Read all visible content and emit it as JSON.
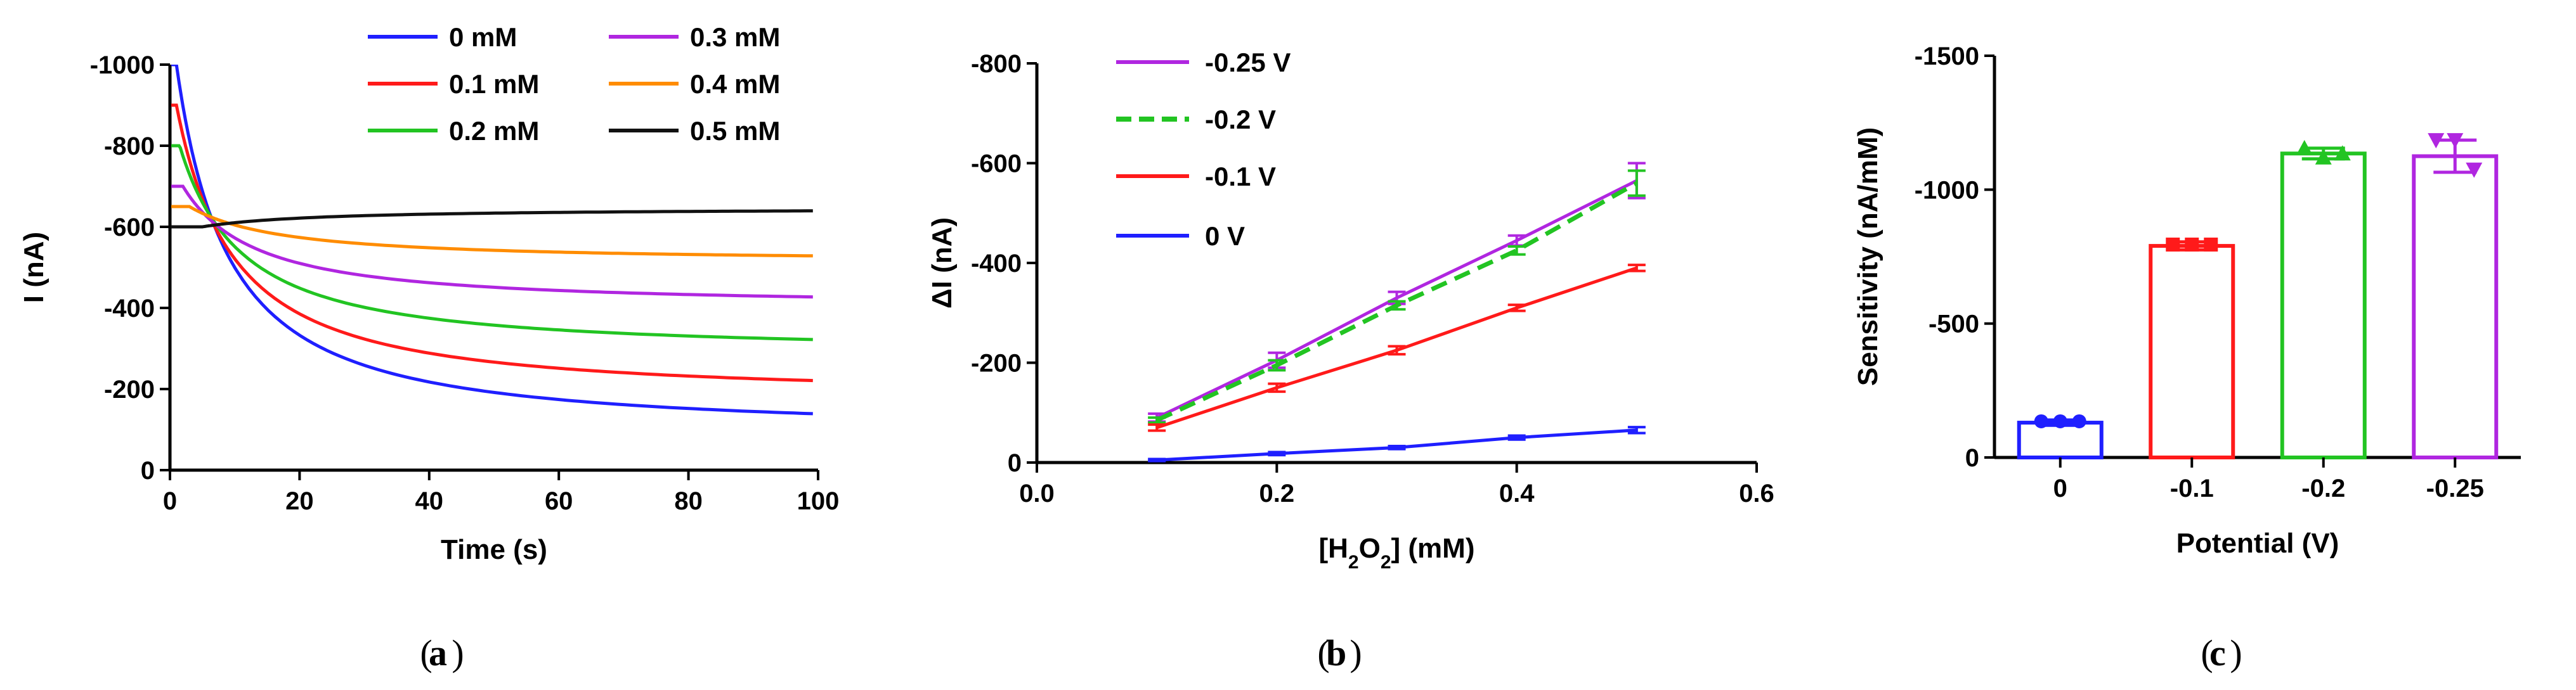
{
  "chart_data": [
    {
      "panel": "a",
      "type": "line",
      "panel_label": "a",
      "xlabel": "Time (s)",
      "ylabel": "I (nA)",
      "xlim": [
        0,
        100
      ],
      "ylim": [
        0,
        -1000
      ],
      "xticks": [
        0,
        20,
        40,
        60,
        80,
        100
      ],
      "yticks": [
        0,
        -200,
        -400,
        -600,
        -800,
        -1000
      ],
      "series": [
        {
          "name": "0 mM",
          "color": "#1f1fff",
          "steady": -93,
          "amp": -1000,
          "tau": 10,
          "t0": 1
        },
        {
          "name": "0.1 mM",
          "color": "#ff1a1a",
          "steady": -180,
          "amp": -900,
          "tau": 11,
          "t0": 1
        },
        {
          "name": "0.2 mM",
          "color": "#22c422",
          "steady": -290,
          "amp": -800,
          "tau": 12,
          "t0": 1.5
        },
        {
          "name": "0.3 mM",
          "color": "#b026e0",
          "steady": -405,
          "amp": -700,
          "tau": 14,
          "t0": 2
        },
        {
          "name": "0.4 mM",
          "color": "#ff8c00",
          "steady": -515,
          "amp": -650,
          "tau": 18,
          "t0": 3
        },
        {
          "name": "0.5 mM",
          "color": "#111111",
          "steady": -645,
          "amp": -600,
          "tau": 22,
          "t0": 5
        }
      ]
    },
    {
      "panel": "b",
      "type": "line",
      "panel_label": "b",
      "xlabel_parts": [
        "[H",
        "2",
        "O",
        "2",
        "] (mM)"
      ],
      "ylabel": "ΔI (nA)",
      "xlim": [
        0.0,
        0.6
      ],
      "ylim": [
        0,
        -800
      ],
      "xticks": [
        0.0,
        0.2,
        0.4,
        0.6
      ],
      "xtick_labels": [
        "0.0",
        "0.2",
        "0.4",
        "0.6"
      ],
      "yticks": [
        0,
        -200,
        -400,
        -600,
        -800
      ],
      "x": [
        0.1,
        0.2,
        0.3,
        0.4,
        0.5
      ],
      "series": [
        {
          "name": "-0.25 V",
          "color": "#b026e0",
          "dashed": false,
          "values": [
            -90,
            -205,
            -330,
            -445,
            -565
          ],
          "errors": [
            8,
            15,
            12,
            10,
            35
          ]
        },
        {
          "name": "-0.2 V",
          "color": "#22c422",
          "dashed": true,
          "values": [
            -85,
            -195,
            -315,
            -425,
            -560
          ],
          "errors": [
            5,
            10,
            8,
            8,
            25
          ]
        },
        {
          "name": "-0.1 V",
          "color": "#ff1a1a",
          "dashed": false,
          "values": [
            -70,
            -150,
            -225,
            -310,
            -390
          ],
          "errors": [
            6,
            8,
            8,
            6,
            6
          ]
        },
        {
          "name": "0 V",
          "color": "#1f1fff",
          "dashed": false,
          "values": [
            -5,
            -18,
            -30,
            -50,
            -65
          ],
          "errors": [
            2,
            3,
            3,
            4,
            6
          ]
        }
      ]
    },
    {
      "panel": "c",
      "type": "bar",
      "panel_label": "c",
      "xlabel": "Potential (V)",
      "ylabel": "Sensitivity (nA/mM)",
      "ylim": [
        0,
        -1500
      ],
      "yticks": [
        0,
        -500,
        -1000,
        -1500
      ],
      "categories": [
        "0",
        "-0.1",
        "-0.2",
        "-0.25"
      ],
      "values": [
        -130,
        -790,
        -1135,
        -1125
      ],
      "errors": [
        10,
        15,
        20,
        60
      ],
      "points": [
        [
          -135,
          -135,
          -135
        ],
        [
          -795,
          -795,
          -795
        ],
        [
          -1155,
          -1120,
          -1135
        ],
        [
          -1185,
          -1185,
          -1075
        ]
      ],
      "colors": [
        "#1f1fff",
        "#ff1a1a",
        "#22c422",
        "#b026e0"
      ]
    }
  ]
}
